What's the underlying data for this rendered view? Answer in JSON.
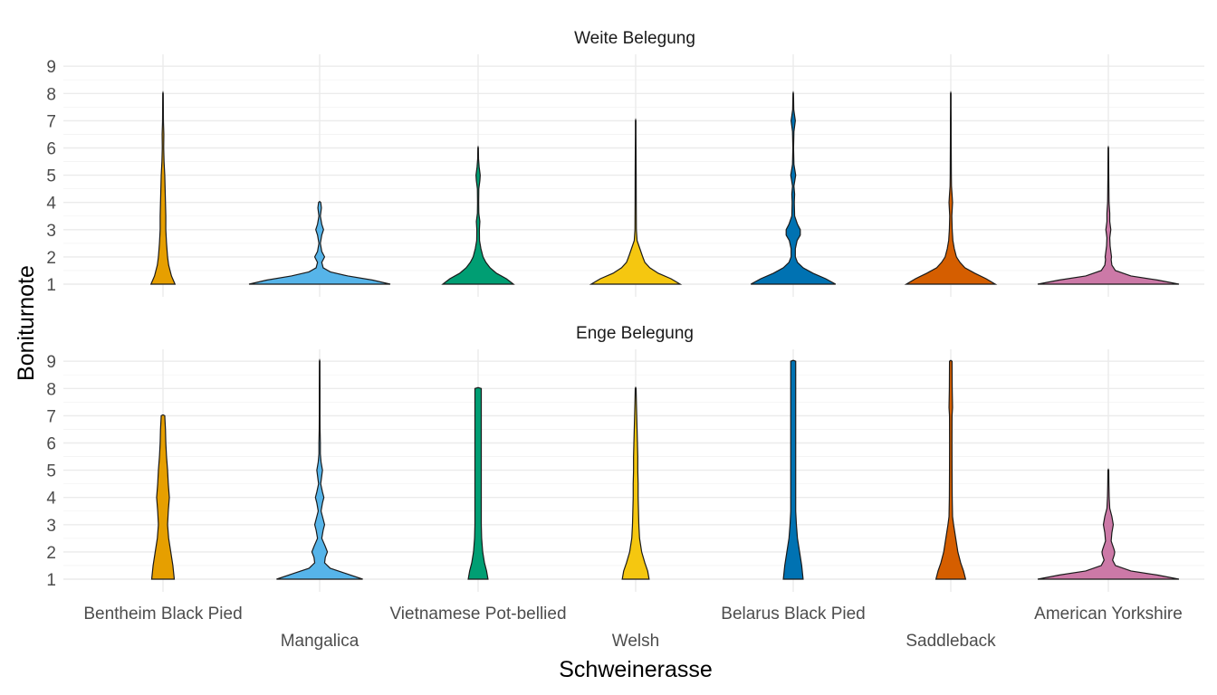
{
  "chart_data": {
    "type": "violin",
    "xlabel": "Schweinerasse",
    "ylabel": "Boniturnote",
    "categories": [
      "Bentheim Black Pied",
      "Mangalica",
      "Vietnamese Pot-bellied",
      "Welsh",
      "Belarus Black Pied",
      "Saddleback",
      "American Yorkshire"
    ],
    "colors": [
      "#E69F00",
      "#56B4E9",
      "#009E73",
      "#F5C710",
      "#0072B2",
      "#D55E00",
      "#CC79A7"
    ],
    "y_ticks": [
      1,
      2,
      3,
      4,
      5,
      6,
      7,
      8,
      9
    ],
    "ylim": [
      1,
      9
    ],
    "grid": true,
    "panels": [
      {
        "title": "Weite Belegung",
        "violins": [
          {
            "name": "Bentheim Black Pied",
            "y": [
              1,
              1.3,
              1.7,
              2,
              2.5,
              3,
              3.5,
              4,
              4.5,
              5,
              5.5,
              6,
              6.5,
              7,
              7.5,
              8
            ],
            "density": [
              0.17,
              0.12,
              0.08,
              0.065,
              0.05,
              0.04,
              0.04,
              0.035,
              0.03,
              0.025,
              0.015,
              0.01,
              0.012,
              0.006,
              0.005,
              0.004
            ]
          },
          {
            "name": "Mangalica",
            "y": [
              1,
              1.15,
              1.3,
              1.45,
              1.6,
              1.8,
              2,
              2.2,
              2.5,
              2.8,
              3,
              3.2,
              3.5,
              3.8,
              4
            ],
            "density": [
              1.0,
              0.75,
              0.4,
              0.15,
              0.05,
              0.03,
              0.07,
              0.03,
              0.01,
              0.03,
              0.055,
              0.03,
              0.01,
              0.025,
              0.015
            ]
          },
          {
            "name": "Vietnamese Pot-bellied",
            "y": [
              1,
              1.2,
              1.4,
              1.6,
              1.8,
              2,
              2.3,
              2.6,
              3,
              3.3,
              3.6,
              4,
              4.5,
              4.8,
              5,
              5.3,
              5.6,
              6
            ],
            "density": [
              0.5,
              0.4,
              0.26,
              0.17,
              0.11,
              0.07,
              0.04,
              0.02,
              0.018,
              0.025,
              0.01,
              0.008,
              0.01,
              0.025,
              0.03,
              0.015,
              0.006,
              0.004
            ]
          },
          {
            "name": "Welsh",
            "y": [
              1,
              1.2,
              1.4,
              1.6,
              1.8,
              2,
              2.3,
              2.6,
              3,
              4,
              5,
              5.5,
              6,
              6.5,
              7
            ],
            "density": [
              0.63,
              0.5,
              0.32,
              0.2,
              0.13,
              0.1,
              0.06,
              0.02,
              0.01,
              0.008,
              0.007,
              0.006,
              0.005,
              0.004,
              0.004
            ]
          },
          {
            "name": "Belarus Black Pied",
            "y": [
              1,
              1.2,
              1.4,
              1.6,
              1.8,
              2,
              2.3,
              2.6,
              2.8,
              3,
              3.2,
              3.5,
              4,
              4.3,
              4.6,
              5,
              5.4,
              6,
              6.6,
              7,
              7.4,
              8
            ],
            "density": [
              0.6,
              0.46,
              0.28,
              0.14,
              0.06,
              0.03,
              0.03,
              0.055,
              0.1,
              0.1,
              0.06,
              0.02,
              0.015,
              0.02,
              0.01,
              0.035,
              0.01,
              0.005,
              0.01,
              0.03,
              0.008,
              0.004
            ]
          },
          {
            "name": "Saddleback",
            "y": [
              1,
              1.2,
              1.4,
              1.6,
              1.8,
              2,
              2.3,
              2.6,
              3,
              3.5,
              4,
              4.3,
              4.6,
              5,
              5.5,
              6,
              6.5,
              7,
              7.5,
              8
            ],
            "density": [
              0.63,
              0.5,
              0.34,
              0.2,
              0.13,
              0.08,
              0.05,
              0.03,
              0.02,
              0.015,
              0.025,
              0.018,
              0.01,
              0.008,
              0.007,
              0.006,
              0.005,
              0.005,
              0.004,
              0.004
            ]
          },
          {
            "name": "American Yorkshire",
            "y": [
              1,
              1.15,
              1.3,
              1.5,
              1.7,
              1.9,
              2,
              2.1,
              2.4,
              2.7,
              3,
              3.3,
              3.6,
              4,
              4.5,
              5,
              5.5,
              6
            ],
            "density": [
              1.0,
              0.7,
              0.32,
              0.1,
              0.05,
              0.04,
              0.045,
              0.04,
              0.025,
              0.02,
              0.035,
              0.02,
              0.02,
              0.01,
              0.008,
              0.006,
              0.005,
              0.004
            ]
          }
        ]
      },
      {
        "title": "Enge Belegung",
        "violins": [
          {
            "name": "Bentheim Black Pied",
            "y": [
              1,
              1.5,
              2,
              2.5,
              3,
              3.5,
              4,
              4.5,
              5,
              5.5,
              6,
              6.5,
              7
            ],
            "density": [
              0.16,
              0.14,
              0.11,
              0.08,
              0.065,
              0.075,
              0.09,
              0.075,
              0.065,
              0.05,
              0.04,
              0.035,
              0.025
            ]
          },
          {
            "name": "Mangalica",
            "y": [
              1,
              1.2,
              1.4,
              1.6,
              1.8,
              2,
              2.2,
              2.5,
              2.8,
              3,
              3.2,
              3.5,
              3.8,
              4,
              4.2,
              4.5,
              4.8,
              5,
              5.3,
              5.6,
              6,
              6.5,
              7,
              8,
              9
            ],
            "density": [
              0.61,
              0.38,
              0.15,
              0.07,
              0.08,
              0.11,
              0.08,
              0.03,
              0.05,
              0.07,
              0.05,
              0.02,
              0.04,
              0.06,
              0.04,
              0.015,
              0.03,
              0.04,
              0.02,
              0.01,
              0.01,
              0.006,
              0.005,
              0.005,
              0.004
            ]
          },
          {
            "name": "Vietnamese Pot-bellied",
            "y": [
              1,
              1.3,
              1.6,
              2,
              2.5,
              3,
              3.5,
              4,
              5,
              6,
              7,
              7.5,
              7.9,
              8
            ],
            "density": [
              0.14,
              0.12,
              0.09,
              0.065,
              0.05,
              0.045,
              0.045,
              0.045,
              0.045,
              0.045,
              0.045,
              0.045,
              0.045,
              0.045
            ]
          },
          {
            "name": "Welsh",
            "y": [
              1,
              1.3,
              1.6,
              2,
              2.5,
              3,
              3.5,
              4,
              4.5,
              5,
              5.5,
              6,
              6.5,
              7,
              7.5,
              8
            ],
            "density": [
              0.19,
              0.17,
              0.13,
              0.085,
              0.055,
              0.045,
              0.04,
              0.035,
              0.035,
              0.03,
              0.03,
              0.025,
              0.02,
              0.015,
              0.01,
              0.006
            ]
          },
          {
            "name": "Belarus Black Pied",
            "y": [
              1,
              1.5,
              2,
              2.5,
              3,
              3.5,
              4,
              5,
              6,
              7,
              8,
              8.8,
              9
            ],
            "density": [
              0.14,
              0.12,
              0.09,
              0.06,
              0.045,
              0.035,
              0.035,
              0.035,
              0.035,
              0.035,
              0.035,
              0.035,
              0.035
            ]
          },
          {
            "name": "Saddleback",
            "y": [
              1,
              1.3,
              1.6,
              2,
              2.5,
              3,
              3.3,
              4,
              5,
              6,
              7,
              7.3,
              8,
              9
            ],
            "density": [
              0.21,
              0.18,
              0.14,
              0.1,
              0.07,
              0.04,
              0.025,
              0.02,
              0.018,
              0.017,
              0.018,
              0.025,
              0.02,
              0.018
            ]
          },
          {
            "name": "American Yorkshire",
            "y": [
              1,
              1.15,
              1.3,
              1.5,
              1.7,
              1.9,
              2,
              2.1,
              2.4,
              2.7,
              3,
              3.3,
              3.6,
              4,
              4.5,
              5
            ],
            "density": [
              1.0,
              0.7,
              0.32,
              0.1,
              0.06,
              0.085,
              0.09,
              0.08,
              0.04,
              0.05,
              0.07,
              0.05,
              0.02,
              0.012,
              0.008,
              0.006
            ]
          }
        ]
      }
    ]
  }
}
